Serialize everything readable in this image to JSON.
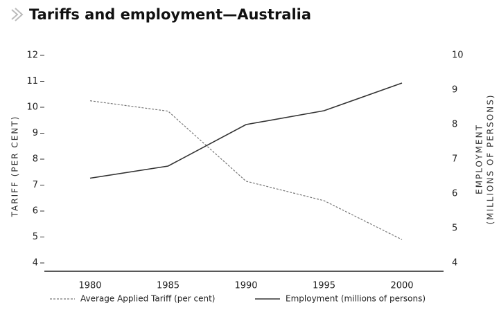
{
  "chart_data": {
    "type": "line",
    "title": "Tariffs and employment—Australia",
    "y_label": "TARIFF (PER CENT)",
    "y2_label": [
      "EMPLOYMENT",
      "(MILLIONS OF PERSONS)"
    ],
    "categories": [
      "1980",
      "1985",
      "1990",
      "1995",
      "2000"
    ],
    "series": [
      {
        "name": "Average Applied Tariff (per cent)",
        "color": "#777777",
        "values": [
          10.25,
          9.85,
          7.15,
          6.4,
          4.9
        ]
      },
      {
        "name": "Employment (millions of persons)",
        "color": "#333333",
        "axis": "y2",
        "values": [
          6.45,
          6.8,
          8.0,
          8.4,
          9.2
        ]
      }
    ],
    "ylim": [
      4,
      12
    ],
    "yticks": [
      4,
      5,
      6,
      7,
      8,
      9,
      10,
      11,
      12
    ],
    "y2lim": [
      4,
      10
    ],
    "y2ticks": [
      4,
      5,
      6,
      7,
      8,
      9,
      10
    ],
    "grid": false
  }
}
